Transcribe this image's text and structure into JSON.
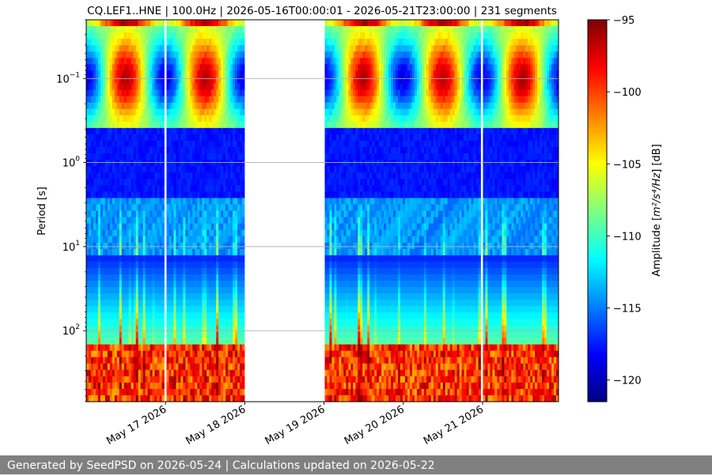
{
  "chart_data": {
    "type": "heatmap",
    "title": "CQ.LEF1..HNE | 100.0Hz | 2026-05-16T00:00:01 - 2026-05-21T23:00:00 | 231 segments",
    "ylabel": "Period [s]",
    "xlabel": "",
    "x_range": [
      "2026-05-16T00:00:01",
      "2026-05-21T23:00:00"
    ],
    "x_ticks": [
      "May 17 2026",
      "May 18 2026",
      "May 19 2026",
      "May 20 2026",
      "May 21 2026"
    ],
    "y_scale": "log",
    "y_inverted": true,
    "y_range": [
      0.02,
      700
    ],
    "y_ticks": [
      {
        "value": 0.1,
        "base": "10",
        "exp": "−1"
      },
      {
        "value": 1,
        "base": "10",
        "exp": "0"
      },
      {
        "value": 10,
        "base": "10",
        "exp": "1"
      },
      {
        "value": 100,
        "base": "10",
        "exp": "2"
      }
    ],
    "grid": "y",
    "colormap": "jet",
    "colorbar": {
      "label_prefix": "Amplitude [",
      "label_unit": "m²/s⁴/Hz",
      "label_suffix": "] [dB]",
      "min": -121.5,
      "max": -95,
      "ticks": [
        "−95",
        "−100",
        "−105",
        "−110",
        "−115",
        "−120"
      ],
      "tick_values": [
        -95,
        -100,
        -105,
        -110,
        -115,
        -120
      ]
    },
    "data_gaps": [
      [
        "2026-05-16T23:45:00",
        "2026-05-17T00:00:00"
      ],
      [
        "2026-05-18T00:00:00",
        "2026-05-19T00:00:00"
      ],
      [
        "2026-05-19T23:40:00",
        "2026-05-20T00:00:00"
      ],
      [
        "2026-05-20T23:45:00",
        "2026-05-21T00:00:00"
      ]
    ]
  },
  "footer": {
    "text": "Generated by SeedPSD on 2026-05-24 | Calculations updated on 2026-05-22"
  }
}
